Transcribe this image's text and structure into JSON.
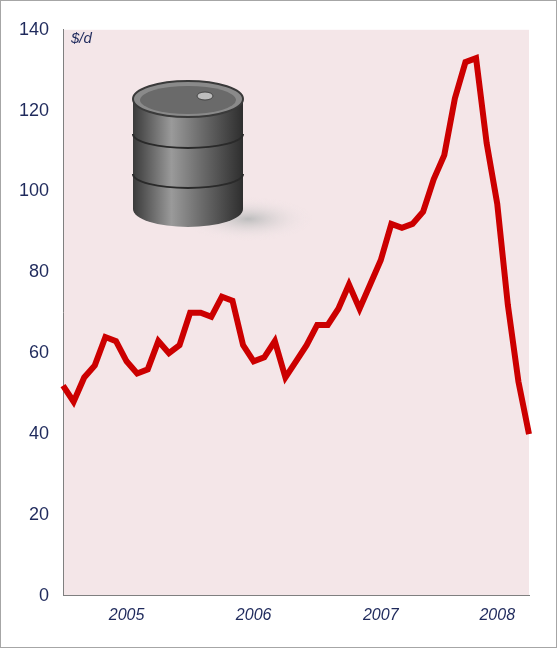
{
  "chart_data": {
    "type": "line",
    "ylabel": "$/d",
    "categories": [
      null,
      null,
      null,
      null,
      null,
      null,
      "2005",
      null,
      null,
      null,
      null,
      null,
      null,
      null,
      null,
      null,
      null,
      null,
      "2006",
      null,
      null,
      null,
      null,
      null,
      null,
      null,
      null,
      null,
      null,
      null,
      "2007",
      null,
      null,
      null,
      null,
      null,
      null,
      null,
      null,
      null,
      null,
      "2008",
      null,
      null,
      null
    ],
    "values": [
      52,
      48,
      54,
      57,
      64,
      63,
      58,
      55,
      56,
      63,
      60,
      62,
      70,
      70,
      69,
      74,
      73,
      62,
      58,
      59,
      63,
      54,
      58,
      62,
      67,
      67,
      71,
      77,
      71,
      77,
      83,
      92,
      91,
      92,
      95,
      103,
      109,
      123,
      132,
      133,
      112,
      97,
      72,
      53,
      40
    ],
    "color": "#cc0000",
    "ylim": [
      0,
      140
    ],
    "yticks": [
      0,
      20,
      40,
      60,
      80,
      100,
      120,
      140
    ],
    "grid": false
  }
}
